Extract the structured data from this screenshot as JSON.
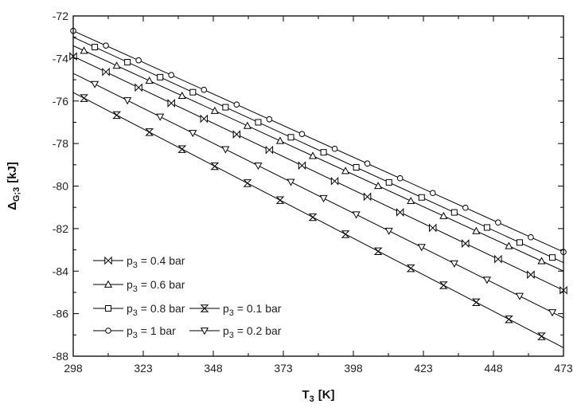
{
  "chart_data": {
    "type": "line",
    "xlabel": "T",
    "xlabel_sub": "3",
    "xlabel_unit": "[K]",
    "ylabel": "Δ",
    "ylabel_sub": "G;3",
    "ylabel_unit": "[kJ]",
    "xlim": [
      298,
      473
    ],
    "ylim": [
      -88,
      -72
    ],
    "xticks": [
      298,
      323,
      348,
      373,
      398,
      423,
      448,
      473
    ],
    "yticks": [
      -72,
      -74,
      -76,
      -78,
      -80,
      -82,
      -84,
      -86,
      -88
    ],
    "grid": false,
    "legend_position": "bottom-left",
    "series": [
      {
        "name": "p3 = 0.4 bar",
        "label_main": "p",
        "label_sub": "3",
        "label_rest": " = 0.4 bar",
        "marker": "bowtie",
        "start": [
          298,
          -73.9
        ],
        "end": [
          473,
          -84.9
        ]
      },
      {
        "name": "p3 = 0.6 bar",
        "label_main": "p",
        "label_sub": "3",
        "label_rest": " = 0.6 bar",
        "marker": "triangle-up",
        "start": [
          298,
          -73.4
        ],
        "end": [
          473,
          -84.0
        ]
      },
      {
        "name": "p3 = 0.8 bar",
        "label_main": "p",
        "label_sub": "3",
        "label_rest": " = 0.8 bar",
        "marker": "square",
        "start": [
          298,
          -73.0
        ],
        "end": [
          473,
          -83.6
        ]
      },
      {
        "name": "p3 = 1 bar",
        "label_main": "p",
        "label_sub": "3",
        "label_rest": " = 1 bar",
        "marker": "circle",
        "start": [
          298,
          -72.7
        ],
        "end": [
          473,
          -83.1
        ]
      },
      {
        "name": "p3 = 0.1 bar",
        "label_main": "p",
        "label_sub": "3",
        "label_rest": " = 0.1 bar",
        "marker": "hourglass",
        "start": [
          298,
          -75.6
        ],
        "end": [
          473,
          -87.6
        ]
      },
      {
        "name": "p3 = 0.2 bar",
        "label_main": "p",
        "label_sub": "3",
        "label_rest": " = 0.2 bar",
        "marker": "triangle-down",
        "start": [
          298,
          -74.7
        ],
        "end": [
          473,
          -86.2
        ]
      }
    ]
  }
}
